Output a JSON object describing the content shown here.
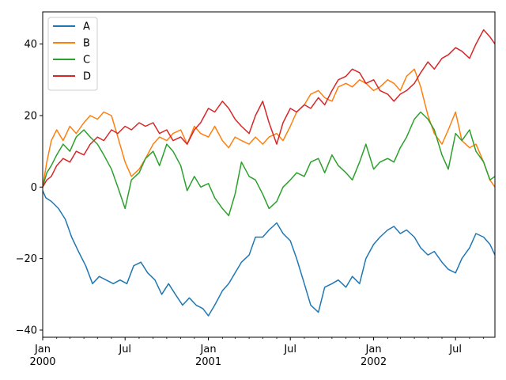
{
  "chart_data": {
    "type": "line",
    "title": "",
    "xlabel": "",
    "ylabel": "",
    "xlim": [
      "2000-01-01",
      "2002-09-26"
    ],
    "ylim": [
      -42,
      49
    ],
    "grid": false,
    "legend": "top-left",
    "y_ticks": [
      -40,
      -20,
      0,
      20,
      40
    ],
    "x_ticks": [
      {
        "date": "2000-01-01",
        "label": "Jan",
        "sublabel": "2000"
      },
      {
        "date": "2000-07-01",
        "label": "Jul",
        "sublabel": ""
      },
      {
        "date": "2001-01-01",
        "label": "Jan",
        "sublabel": "2001"
      },
      {
        "date": "2001-07-01",
        "label": "Jul",
        "sublabel": ""
      },
      {
        "date": "2002-01-01",
        "label": "Jan",
        "sublabel": "2002"
      },
      {
        "date": "2002-07-01",
        "label": "Jul",
        "sublabel": ""
      }
    ],
    "x_minor_ticks": [
      "2000-02-01",
      "2000-03-01",
      "2000-04-01",
      "2000-05-01",
      "2000-06-01",
      "2000-08-01",
      "2000-09-01",
      "2000-10-01",
      "2000-11-01",
      "2000-12-01",
      "2001-02-01",
      "2001-03-01",
      "2001-04-01",
      "2001-05-01",
      "2001-06-01",
      "2001-08-01",
      "2001-09-01",
      "2001-10-01",
      "2001-11-01",
      "2001-12-01",
      "2002-02-01",
      "2002-03-01",
      "2002-04-01",
      "2002-05-01",
      "2002-06-01",
      "2002-08-01",
      "2002-09-01"
    ],
    "series": [
      {
        "name": "A",
        "color": "#1f77b4",
        "points": [
          [
            "2000-01-01",
            -1
          ],
          [
            "2000-01-08",
            -3
          ],
          [
            "2000-01-20",
            -4
          ],
          [
            "2000-02-05",
            -6
          ],
          [
            "2000-02-20",
            -9
          ],
          [
            "2000-03-05",
            -14
          ],
          [
            "2000-03-20",
            -18
          ],
          [
            "2000-04-05",
            -22
          ],
          [
            "2000-04-20",
            -27
          ],
          [
            "2000-05-05",
            -25
          ],
          [
            "2000-05-20",
            -26
          ],
          [
            "2000-06-05",
            -27
          ],
          [
            "2000-06-20",
            -26
          ],
          [
            "2000-07-05",
            -27
          ],
          [
            "2000-07-20",
            -22
          ],
          [
            "2000-08-05",
            -21
          ],
          [
            "2000-08-20",
            -24
          ],
          [
            "2000-09-05",
            -26
          ],
          [
            "2000-09-20",
            -30
          ],
          [
            "2000-10-05",
            -27
          ],
          [
            "2000-10-20",
            -30
          ],
          [
            "2000-11-05",
            -33
          ],
          [
            "2000-11-20",
            -31
          ],
          [
            "2000-12-05",
            -33
          ],
          [
            "2000-12-20",
            -34
          ],
          [
            "2001-01-01",
            -36
          ],
          [
            "2001-01-15",
            -33
          ],
          [
            "2001-02-01",
            -29
          ],
          [
            "2001-02-15",
            -27
          ],
          [
            "2001-03-01",
            -24
          ],
          [
            "2001-03-15",
            -21
          ],
          [
            "2001-04-01",
            -19
          ],
          [
            "2001-04-15",
            -14
          ],
          [
            "2001-05-01",
            -14
          ],
          [
            "2001-05-15",
            -12
          ],
          [
            "2001-06-01",
            -10
          ],
          [
            "2001-06-15",
            -13
          ],
          [
            "2001-07-01",
            -15
          ],
          [
            "2001-07-15",
            -20
          ],
          [
            "2001-08-01",
            -27
          ],
          [
            "2001-08-15",
            -33
          ],
          [
            "2001-09-01",
            -35
          ],
          [
            "2001-09-15",
            -28
          ],
          [
            "2001-10-01",
            -27
          ],
          [
            "2001-10-15",
            -26
          ],
          [
            "2001-11-01",
            -28
          ],
          [
            "2001-11-15",
            -25
          ],
          [
            "2001-12-01",
            -27
          ],
          [
            "2001-12-15",
            -20
          ],
          [
            "2002-01-01",
            -16
          ],
          [
            "2002-01-15",
            -14
          ],
          [
            "2002-02-01",
            -12
          ],
          [
            "2002-02-15",
            -11
          ],
          [
            "2002-03-01",
            -13
          ],
          [
            "2002-03-15",
            -12
          ],
          [
            "2002-04-01",
            -14
          ],
          [
            "2002-04-15",
            -17
          ],
          [
            "2002-05-01",
            -19
          ],
          [
            "2002-05-15",
            -18
          ],
          [
            "2002-06-01",
            -21
          ],
          [
            "2002-06-15",
            -23
          ],
          [
            "2002-07-01",
            -24
          ],
          [
            "2002-07-15",
            -20
          ],
          [
            "2002-08-01",
            -17
          ],
          [
            "2002-08-15",
            -13
          ],
          [
            "2002-09-01",
            -14
          ],
          [
            "2002-09-15",
            -16
          ],
          [
            "2002-09-26",
            -19
          ]
        ]
      },
      {
        "name": "B",
        "color": "#ff7f0e",
        "points": [
          [
            "2000-01-01",
            0
          ],
          [
            "2000-01-10",
            7
          ],
          [
            "2000-01-20",
            13
          ],
          [
            "2000-02-01",
            16
          ],
          [
            "2000-02-15",
            13
          ],
          [
            "2000-03-01",
            17
          ],
          [
            "2000-03-15",
            15
          ],
          [
            "2000-04-01",
            18
          ],
          [
            "2000-04-15",
            20
          ],
          [
            "2000-05-01",
            19
          ],
          [
            "2000-05-15",
            21
          ],
          [
            "2000-06-01",
            20
          ],
          [
            "2000-06-15",
            14
          ],
          [
            "2000-07-01",
            7
          ],
          [
            "2000-07-15",
            3
          ],
          [
            "2000-08-01",
            5
          ],
          [
            "2000-08-15",
            8
          ],
          [
            "2000-09-01",
            12
          ],
          [
            "2000-09-15",
            14
          ],
          [
            "2000-10-01",
            13
          ],
          [
            "2000-10-15",
            15
          ],
          [
            "2000-11-01",
            16
          ],
          [
            "2000-11-15",
            12
          ],
          [
            "2000-12-01",
            17
          ],
          [
            "2000-12-15",
            15
          ],
          [
            "2001-01-01",
            14
          ],
          [
            "2001-01-15",
            17
          ],
          [
            "2001-02-01",
            13
          ],
          [
            "2001-02-15",
            11
          ],
          [
            "2001-03-01",
            14
          ],
          [
            "2001-03-15",
            13
          ],
          [
            "2001-04-01",
            12
          ],
          [
            "2001-04-15",
            14
          ],
          [
            "2001-05-01",
            12
          ],
          [
            "2001-05-15",
            14
          ],
          [
            "2001-06-01",
            15
          ],
          [
            "2001-06-15",
            13
          ],
          [
            "2001-07-01",
            17
          ],
          [
            "2001-07-15",
            21
          ],
          [
            "2001-08-01",
            23
          ],
          [
            "2001-08-15",
            26
          ],
          [
            "2001-09-01",
            27
          ],
          [
            "2001-09-15",
            25
          ],
          [
            "2001-10-01",
            24
          ],
          [
            "2001-10-15",
            28
          ],
          [
            "2001-11-01",
            29
          ],
          [
            "2001-11-15",
            28
          ],
          [
            "2001-12-01",
            30
          ],
          [
            "2001-12-15",
            29
          ],
          [
            "2002-01-01",
            27
          ],
          [
            "2002-01-15",
            28
          ],
          [
            "2002-02-01",
            30
          ],
          [
            "2002-02-15",
            29
          ],
          [
            "2002-03-01",
            27
          ],
          [
            "2002-03-15",
            31
          ],
          [
            "2002-04-01",
            33
          ],
          [
            "2002-04-15",
            28
          ],
          [
            "2002-05-01",
            20
          ],
          [
            "2002-05-15",
            15
          ],
          [
            "2002-06-01",
            12
          ],
          [
            "2002-06-15",
            16
          ],
          [
            "2002-07-01",
            21
          ],
          [
            "2002-07-15",
            13
          ],
          [
            "2002-08-01",
            11
          ],
          [
            "2002-08-15",
            12
          ],
          [
            "2002-09-01",
            7
          ],
          [
            "2002-09-15",
            2
          ],
          [
            "2002-09-26",
            0
          ]
        ]
      },
      {
        "name": "C",
        "color": "#2ca02c",
        "points": [
          [
            "2000-01-01",
            0
          ],
          [
            "2000-01-10",
            4
          ],
          [
            "2000-01-20",
            6
          ],
          [
            "2000-02-01",
            9
          ],
          [
            "2000-02-15",
            12
          ],
          [
            "2000-03-01",
            10
          ],
          [
            "2000-03-15",
            14
          ],
          [
            "2000-04-01",
            16
          ],
          [
            "2000-04-15",
            14
          ],
          [
            "2000-05-01",
            12
          ],
          [
            "2000-05-15",
            9
          ],
          [
            "2000-06-01",
            5
          ],
          [
            "2000-06-15",
            0
          ],
          [
            "2000-07-01",
            -6
          ],
          [
            "2000-07-15",
            2
          ],
          [
            "2000-08-01",
            4
          ],
          [
            "2000-08-15",
            8
          ],
          [
            "2000-09-01",
            10
          ],
          [
            "2000-09-15",
            6
          ],
          [
            "2000-10-01",
            12
          ],
          [
            "2000-10-15",
            10
          ],
          [
            "2000-11-01",
            6
          ],
          [
            "2000-11-15",
            -1
          ],
          [
            "2000-12-01",
            3
          ],
          [
            "2000-12-15",
            0
          ],
          [
            "2001-01-01",
            1
          ],
          [
            "2001-01-15",
            -3
          ],
          [
            "2001-02-01",
            -6
          ],
          [
            "2001-02-15",
            -8
          ],
          [
            "2001-03-01",
            -2
          ],
          [
            "2001-03-15",
            7
          ],
          [
            "2001-04-01",
            3
          ],
          [
            "2001-04-15",
            2
          ],
          [
            "2001-05-01",
            -2
          ],
          [
            "2001-05-15",
            -6
          ],
          [
            "2001-06-01",
            -4
          ],
          [
            "2001-06-15",
            0
          ],
          [
            "2001-07-01",
            2
          ],
          [
            "2001-07-15",
            4
          ],
          [
            "2001-08-01",
            3
          ],
          [
            "2001-08-15",
            7
          ],
          [
            "2001-09-01",
            8
          ],
          [
            "2001-09-15",
            4
          ],
          [
            "2001-10-01",
            9
          ],
          [
            "2001-10-15",
            6
          ],
          [
            "2001-11-01",
            4
          ],
          [
            "2001-11-15",
            2
          ],
          [
            "2001-12-01",
            7
          ],
          [
            "2001-12-15",
            12
          ],
          [
            "2002-01-01",
            5
          ],
          [
            "2002-01-15",
            7
          ],
          [
            "2002-02-01",
            8
          ],
          [
            "2002-02-15",
            7
          ],
          [
            "2002-03-01",
            11
          ],
          [
            "2002-03-15",
            14
          ],
          [
            "2002-04-01",
            19
          ],
          [
            "2002-04-15",
            21
          ],
          [
            "2002-05-01",
            19
          ],
          [
            "2002-05-15",
            16
          ],
          [
            "2002-06-01",
            9
          ],
          [
            "2002-06-15",
            5
          ],
          [
            "2002-07-01",
            15
          ],
          [
            "2002-07-15",
            13
          ],
          [
            "2002-08-01",
            16
          ],
          [
            "2002-08-15",
            10
          ],
          [
            "2002-09-01",
            7
          ],
          [
            "2002-09-15",
            2
          ],
          [
            "2002-09-26",
            3
          ]
        ]
      },
      {
        "name": "D",
        "color": "#d62728",
        "points": [
          [
            "2000-01-01",
            0
          ],
          [
            "2000-01-10",
            2
          ],
          [
            "2000-01-20",
            3
          ],
          [
            "2000-02-01",
            6
          ],
          [
            "2000-02-15",
            8
          ],
          [
            "2000-03-01",
            7
          ],
          [
            "2000-03-15",
            10
          ],
          [
            "2000-04-01",
            9
          ],
          [
            "2000-04-15",
            12
          ],
          [
            "2000-05-01",
            14
          ],
          [
            "2000-05-15",
            13
          ],
          [
            "2000-06-01",
            16
          ],
          [
            "2000-06-15",
            15
          ],
          [
            "2000-07-01",
            17
          ],
          [
            "2000-07-15",
            16
          ],
          [
            "2000-08-01",
            18
          ],
          [
            "2000-08-15",
            17
          ],
          [
            "2000-09-01",
            18
          ],
          [
            "2000-09-15",
            15
          ],
          [
            "2000-10-01",
            16
          ],
          [
            "2000-10-15",
            13
          ],
          [
            "2000-11-01",
            14
          ],
          [
            "2000-11-15",
            12
          ],
          [
            "2000-12-01",
            16
          ],
          [
            "2000-12-15",
            18
          ],
          [
            "2001-01-01",
            22
          ],
          [
            "2001-01-15",
            21
          ],
          [
            "2001-02-01",
            24
          ],
          [
            "2001-02-15",
            22
          ],
          [
            "2001-03-01",
            19
          ],
          [
            "2001-03-15",
            17
          ],
          [
            "2001-04-01",
            15
          ],
          [
            "2001-04-15",
            20
          ],
          [
            "2001-05-01",
            24
          ],
          [
            "2001-05-15",
            18
          ],
          [
            "2001-06-01",
            12
          ],
          [
            "2001-06-15",
            18
          ],
          [
            "2001-07-01",
            22
          ],
          [
            "2001-07-15",
            21
          ],
          [
            "2001-08-01",
            23
          ],
          [
            "2001-08-15",
            22
          ],
          [
            "2001-09-01",
            25
          ],
          [
            "2001-09-15",
            23
          ],
          [
            "2001-10-01",
            27
          ],
          [
            "2001-10-15",
            30
          ],
          [
            "2001-11-01",
            31
          ],
          [
            "2001-11-15",
            33
          ],
          [
            "2001-12-01",
            32
          ],
          [
            "2001-12-15",
            29
          ],
          [
            "2002-01-01",
            30
          ],
          [
            "2002-01-15",
            27
          ],
          [
            "2002-02-01",
            26
          ],
          [
            "2002-02-15",
            24
          ],
          [
            "2002-03-01",
            26
          ],
          [
            "2002-03-15",
            27
          ],
          [
            "2002-04-01",
            29
          ],
          [
            "2002-04-15",
            32
          ],
          [
            "2002-05-01",
            35
          ],
          [
            "2002-05-15",
            33
          ],
          [
            "2002-06-01",
            36
          ],
          [
            "2002-06-15",
            37
          ],
          [
            "2002-07-01",
            39
          ],
          [
            "2002-07-15",
            38
          ],
          [
            "2002-08-01",
            36
          ],
          [
            "2002-08-15",
            40
          ],
          [
            "2002-09-01",
            44
          ],
          [
            "2002-09-15",
            42
          ],
          [
            "2002-09-26",
            40
          ]
        ]
      }
    ]
  }
}
